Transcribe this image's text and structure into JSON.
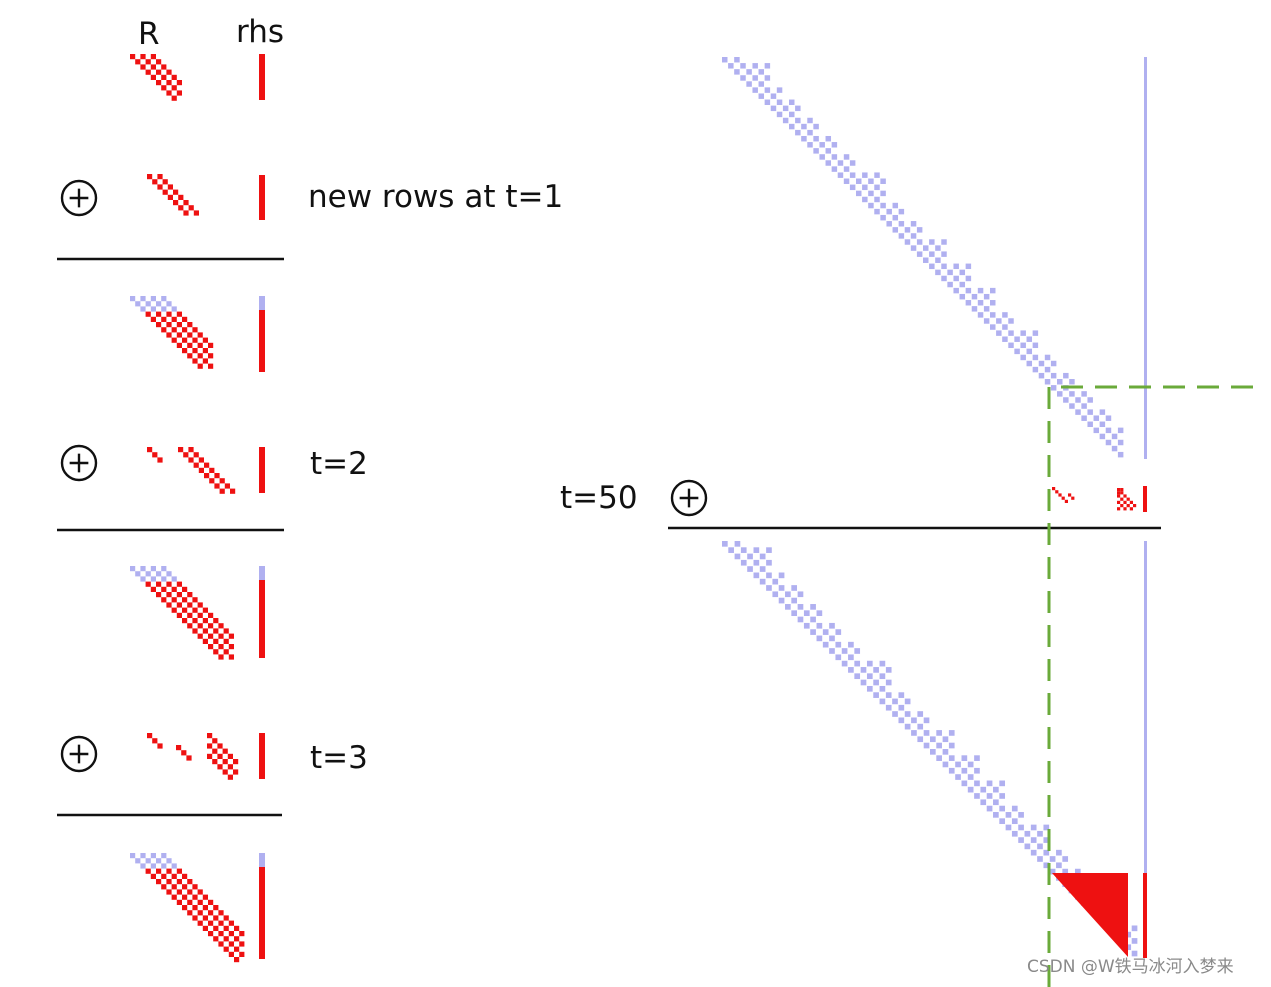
{
  "labels": {
    "r_header": "R",
    "rhs_header": "rhs",
    "step1": "new rows at t=1",
    "step2": "t=2",
    "step3": "t=3",
    "step50": "t=50"
  },
  "watermark": "CSDN @W铁马冰河入梦来",
  "colors": {
    "prior": "#b0b0f0",
    "new": "#ee1111",
    "line": "#111111",
    "guide": "#6aaa3a"
  }
}
